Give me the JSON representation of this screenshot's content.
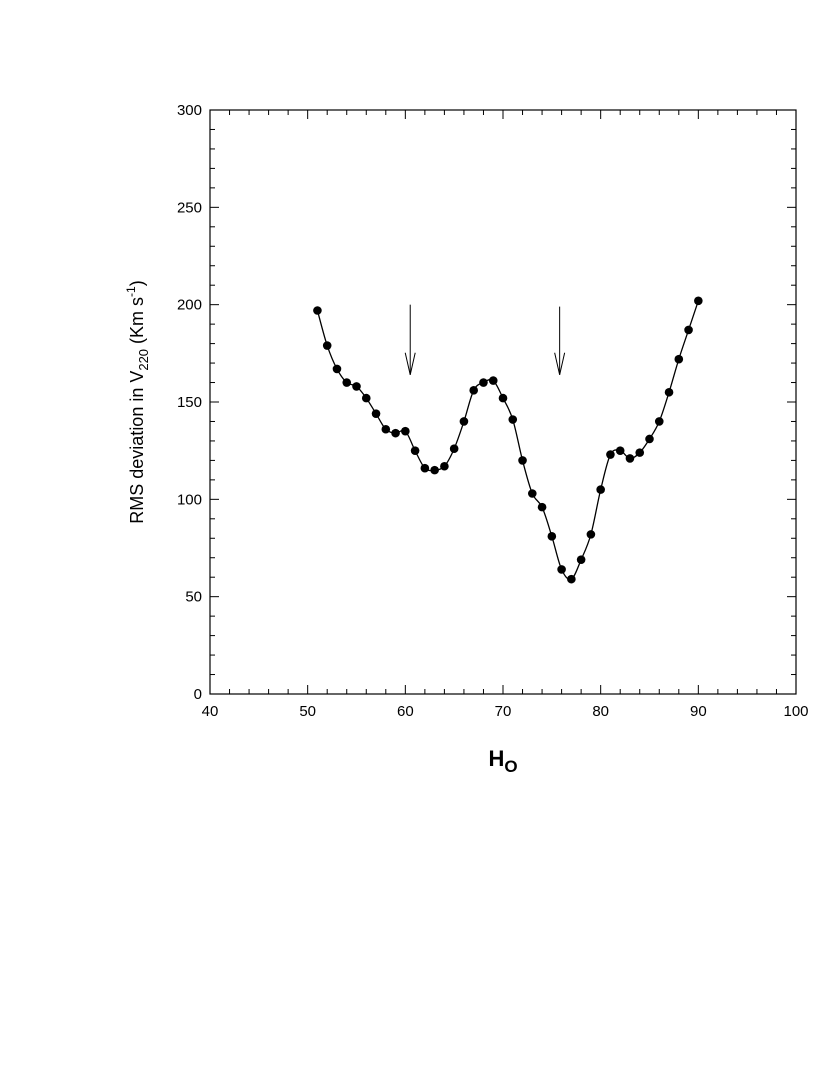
{
  "chart_data": {
    "type": "line",
    "title": "",
    "xlabel": "H",
    "xlabel_subscript": "O",
    "ylabel": "RMS deviation in V",
    "ylabel_subscript": "220",
    "ylabel_unit_open": " (Km s",
    "ylabel_unit_exp": "-1",
    "ylabel_unit_close": ")",
    "xlim": [
      40,
      100
    ],
    "ylim": [
      0,
      300
    ],
    "xticks": [
      "40",
      "50",
      "60",
      "70",
      "80",
      "90",
      "100"
    ],
    "yticks": [
      "0",
      "50",
      "100",
      "150",
      "200",
      "250",
      "300"
    ],
    "grid": false,
    "marker": "filled-circle",
    "line_color": "#000000",
    "x": [
      51,
      52,
      53,
      54,
      55,
      56,
      57,
      58,
      59,
      60,
      61,
      62,
      63,
      64,
      65,
      66,
      67,
      68,
      69,
      70,
      71,
      72,
      73,
      74,
      75,
      76,
      77,
      78,
      79,
      80,
      81,
      82,
      83,
      84,
      85,
      86,
      87,
      88,
      89,
      90
    ],
    "y": [
      197,
      179,
      167,
      160,
      158,
      152,
      144,
      136,
      134,
      135,
      125,
      116,
      115,
      117,
      126,
      140,
      156,
      160,
      161,
      152,
      141,
      120,
      103,
      96,
      81,
      64,
      59,
      69,
      82,
      105,
      123,
      125,
      121,
      124,
      131,
      140,
      155,
      172,
      187,
      202
    ],
    "annotations": [
      {
        "type": "arrow",
        "x": 60.5,
        "y_from": 200,
        "y_to": 164
      },
      {
        "type": "arrow",
        "x": 75.8,
        "y_from": 199,
        "y_to": 164
      }
    ]
  }
}
